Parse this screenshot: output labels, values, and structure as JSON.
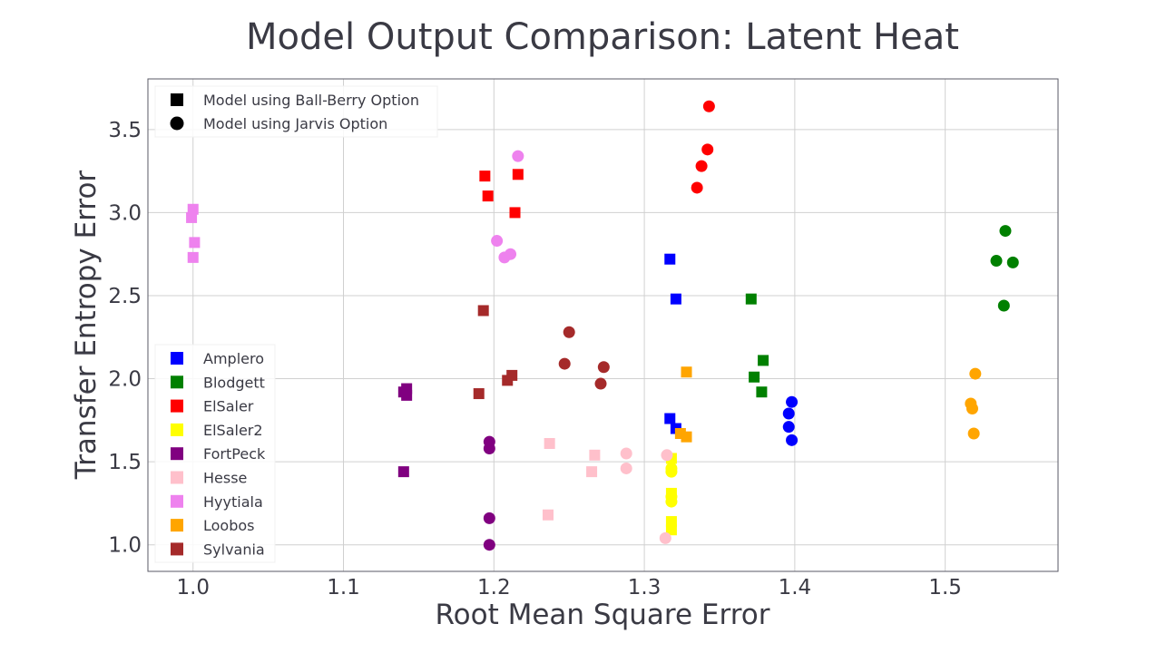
{
  "chart_data": {
    "type": "scatter",
    "title": "Model Output Comparison: Latent Heat",
    "xlabel": "Root Mean Square Error",
    "ylabel": "Transfer Entropy Error",
    "xlim": [
      0.97,
      1.575
    ],
    "ylim": [
      0.84,
      3.805
    ],
    "xticks": [
      1.0,
      1.1,
      1.2,
      1.3,
      1.4,
      1.5
    ],
    "xtick_labels": [
      "1.0",
      "1.1",
      "1.2",
      "1.3",
      "1.4",
      "1.5"
    ],
    "yticks": [
      1.0,
      1.5,
      2.0,
      2.5,
      3.0,
      3.5
    ],
    "ytick_labels": [
      "1.0",
      "1.5",
      "2.0",
      "2.5",
      "3.0",
      "3.5"
    ],
    "grid": true,
    "marker_legend": {
      "placement": "top-left",
      "entries": [
        {
          "marker": "square",
          "label": "Model using Ball-Berry Option"
        },
        {
          "marker": "circle",
          "label": "Model using Jarvis Option"
        }
      ]
    },
    "site_legend": {
      "placement": "lower-left",
      "marker": "square"
    },
    "series": [
      {
        "name": "Amplero",
        "color": "#0000ff",
        "ballberry": [
          [
            1.317,
            2.72
          ],
          [
            1.321,
            2.48
          ],
          [
            1.317,
            1.76
          ],
          [
            1.321,
            1.7
          ]
        ],
        "jarvis": [
          [
            1.398,
            1.86
          ],
          [
            1.396,
            1.79
          ],
          [
            1.396,
            1.71
          ],
          [
            1.398,
            1.63
          ]
        ]
      },
      {
        "name": "Blodgett",
        "color": "#008000",
        "ballberry": [
          [
            1.371,
            2.48
          ],
          [
            1.379,
            2.11
          ],
          [
            1.373,
            2.01
          ],
          [
            1.378,
            1.92
          ]
        ],
        "jarvis": [
          [
            1.54,
            2.89
          ],
          [
            1.534,
            2.71
          ],
          [
            1.545,
            2.7
          ],
          [
            1.539,
            2.44
          ]
        ]
      },
      {
        "name": "ElSaler",
        "color": "#ff0000",
        "ballberry": [
          [
            1.194,
            3.22
          ],
          [
            1.216,
            3.23
          ],
          [
            1.196,
            3.1
          ],
          [
            1.214,
            3.0
          ]
        ],
        "jarvis": [
          [
            1.343,
            3.64
          ],
          [
            1.342,
            3.38
          ],
          [
            1.338,
            3.28
          ],
          [
            1.335,
            3.15
          ]
        ]
      },
      {
        "name": "ElSaler2",
        "color": "#ffff00",
        "ballberry": [
          [
            1.318,
            1.52
          ],
          [
            1.318,
            1.31
          ],
          [
            1.318,
            1.14
          ],
          [
            1.318,
            1.09
          ]
        ],
        "jarvis": [
          [
            1.318,
            1.46
          ],
          [
            1.318,
            1.44
          ],
          [
            1.318,
            1.29
          ],
          [
            1.318,
            1.26
          ]
        ]
      },
      {
        "name": "FortPeck",
        "color": "#800080",
        "ballberry": [
          [
            1.14,
            1.92
          ],
          [
            1.142,
            1.94
          ],
          [
            1.142,
            1.9
          ],
          [
            1.14,
            1.44
          ]
        ],
        "jarvis": [
          [
            1.197,
            1.62
          ],
          [
            1.197,
            1.58
          ],
          [
            1.197,
            1.16
          ],
          [
            1.197,
            1.0
          ]
        ]
      },
      {
        "name": "Hesse",
        "color": "#ffc0cb",
        "ballberry": [
          [
            1.237,
            1.61
          ],
          [
            1.267,
            1.54
          ],
          [
            1.265,
            1.44
          ],
          [
            1.236,
            1.18
          ]
        ],
        "jarvis": [
          [
            1.288,
            1.55
          ],
          [
            1.288,
            1.46
          ],
          [
            1.315,
            1.54
          ],
          [
            1.314,
            1.04
          ]
        ]
      },
      {
        "name": "Hyytiala",
        "color": "#ee82ee",
        "ballberry": [
          [
            1.0,
            3.02
          ],
          [
            0.999,
            2.97
          ],
          [
            1.001,
            2.82
          ],
          [
            1.0,
            2.73
          ]
        ],
        "jarvis": [
          [
            1.216,
            3.34
          ],
          [
            1.202,
            2.83
          ],
          [
            1.211,
            2.75
          ],
          [
            1.207,
            2.73
          ]
        ]
      },
      {
        "name": "Loobos",
        "color": "#ffa500",
        "ballberry": [
          [
            1.328,
            2.04
          ],
          [
            1.324,
            1.67
          ],
          [
            1.328,
            1.65
          ]
        ],
        "jarvis": [
          [
            1.52,
            2.03
          ],
          [
            1.517,
            1.85
          ],
          [
            1.518,
            1.82
          ],
          [
            1.519,
            1.67
          ]
        ]
      },
      {
        "name": "Sylvania",
        "color": "#a52a2a",
        "ballberry": [
          [
            1.193,
            2.41
          ],
          [
            1.212,
            2.02
          ],
          [
            1.209,
            1.99
          ],
          [
            1.19,
            1.91
          ]
        ],
        "jarvis": [
          [
            1.25,
            2.28
          ],
          [
            1.247,
            2.09
          ],
          [
            1.273,
            2.07
          ],
          [
            1.271,
            1.97
          ]
        ]
      }
    ]
  }
}
